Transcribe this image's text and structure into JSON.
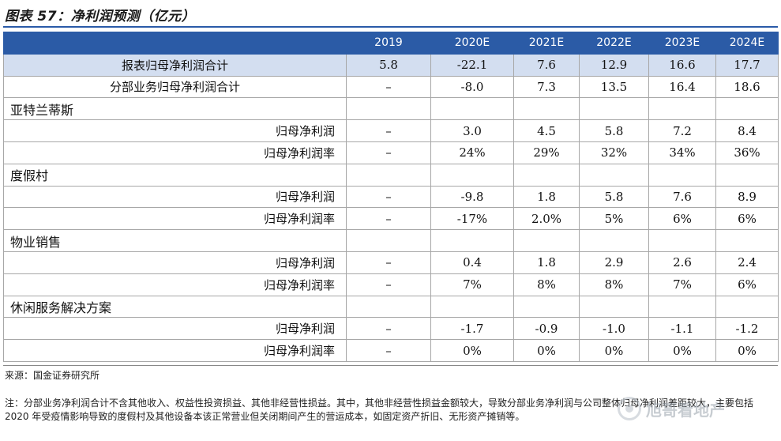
{
  "title": "图表 57：净利润预测（亿元）",
  "table": {
    "header": [
      "",
      "2019",
      "2020E",
      "2021E",
      "2022E",
      "2023E",
      "2024E"
    ],
    "rows": [
      {
        "type": "total",
        "label": "报表归母净利润合计",
        "cells": [
          "5.8",
          "-22.1",
          "7.6",
          "12.9",
          "16.6",
          "17.7"
        ]
      },
      {
        "type": "center",
        "label": "分部业务归母净利润合计",
        "cells": [
          "–",
          "-8.0",
          "7.3",
          "13.5",
          "16.4",
          "18.6"
        ]
      },
      {
        "type": "section",
        "label": "亚特兰蒂斯",
        "cells": [
          "",
          "",
          "",
          "",
          "",
          ""
        ]
      },
      {
        "type": "indent",
        "label": "归母净利润",
        "cells": [
          "–",
          "3.0",
          "4.5",
          "5.8",
          "7.2",
          "8.4"
        ]
      },
      {
        "type": "indent",
        "label": "归母净利润率",
        "cells": [
          "–",
          "24%",
          "29%",
          "32%",
          "34%",
          "36%"
        ]
      },
      {
        "type": "section",
        "label": "度假村",
        "cells": [
          "",
          "",
          "",
          "",
          "",
          ""
        ]
      },
      {
        "type": "indent",
        "label": "归母净利润",
        "cells": [
          "–",
          "-9.8",
          "1.8",
          "5.8",
          "7.6",
          "8.9"
        ]
      },
      {
        "type": "indent",
        "label": "归母净利润率",
        "cells": [
          "–",
          "-17%",
          "2.0%",
          "5%",
          "6%",
          "6%"
        ]
      },
      {
        "type": "section",
        "label": "物业销售",
        "cells": [
          "",
          "",
          "",
          "",
          "",
          ""
        ]
      },
      {
        "type": "indent",
        "label": "归母净利润",
        "cells": [
          "–",
          "0.4",
          "1.8",
          "2.9",
          "2.6",
          "2.4"
        ]
      },
      {
        "type": "indent",
        "label": "归母净利润率",
        "cells": [
          "–",
          "7%",
          "8%",
          "8%",
          "7%",
          "6%"
        ]
      },
      {
        "type": "section",
        "label": "休闲服务解决方案",
        "cells": [
          "",
          "",
          "",
          "",
          "",
          ""
        ]
      },
      {
        "type": "indent",
        "label": "归母净利润",
        "cells": [
          "–",
          "-1.7",
          "-0.9",
          "-1.0",
          "-1.1",
          "-1.2"
        ]
      },
      {
        "type": "indent",
        "label": "归母净利润率",
        "cells": [
          "–",
          "0%",
          "0%",
          "0%",
          "0%",
          "0%"
        ]
      }
    ]
  },
  "source": "来源：国金证券研究所",
  "note": "注：分部业务净利润合计不含其他收入、权益性投资损益、其他非经营性损益。其中，其他非经营性损益金额较大，导致分部业务净利润与公司整体归母净利润差距较大，主要包括 2020 年受疫情影响导致的度假村及其他设备本该正常营业但关闭期间产生的营运成本，如固定资产折旧、无形资产摊销等。",
  "watermark": "旭哥看地产"
}
